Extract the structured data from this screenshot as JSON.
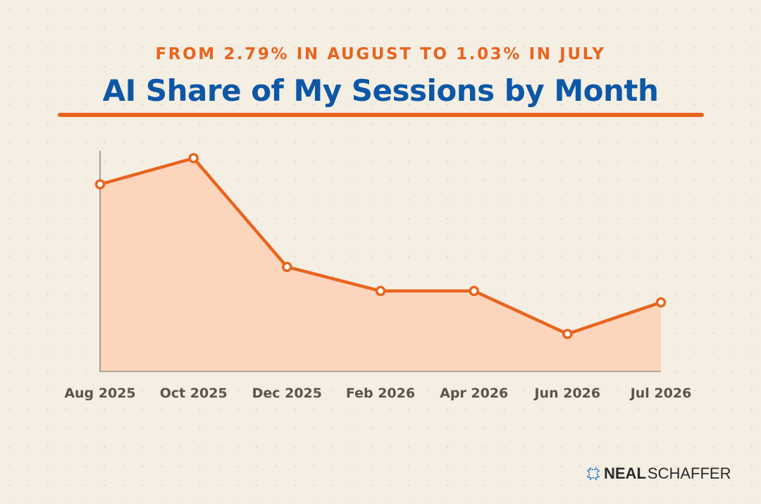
{
  "header": {
    "subtitle": "FROM 2.79% IN AUGUST TO 1.03% IN JULY",
    "title": "AI Share of My Sessions by Month"
  },
  "colors": {
    "accent_orange": "#e8641e",
    "title_blue": "#0d57a6",
    "area_fill": "#fdd5bd",
    "tick_text": "#5c554c",
    "axis": "#8a847a",
    "background": "#f4eee3",
    "logo_blue": "#2d7fc8"
  },
  "chart_data": {
    "type": "area",
    "title": "AI Share of My Sessions by Month",
    "subtitle": "FROM 2.79% IN AUGUST TO 1.03% IN JULY",
    "xlabel": "",
    "ylabel": "",
    "unit": "%",
    "categories": [
      "Aug 2025",
      "Oct 2025",
      "Dec 2025",
      "Feb 2026",
      "Apr 2026",
      "Jun 2026",
      "Jul 2026"
    ],
    "series": [
      {
        "values": [
          2.79,
          3.18,
          1.56,
          1.2,
          1.2,
          0.56,
          1.03
        ]
      }
    ],
    "ylim": [
      0,
      3.3
    ],
    "grid": false,
    "markers": true,
    "legend": "none"
  },
  "logo": {
    "part1": "NEAL",
    "part2": "SCHAFFER"
  }
}
